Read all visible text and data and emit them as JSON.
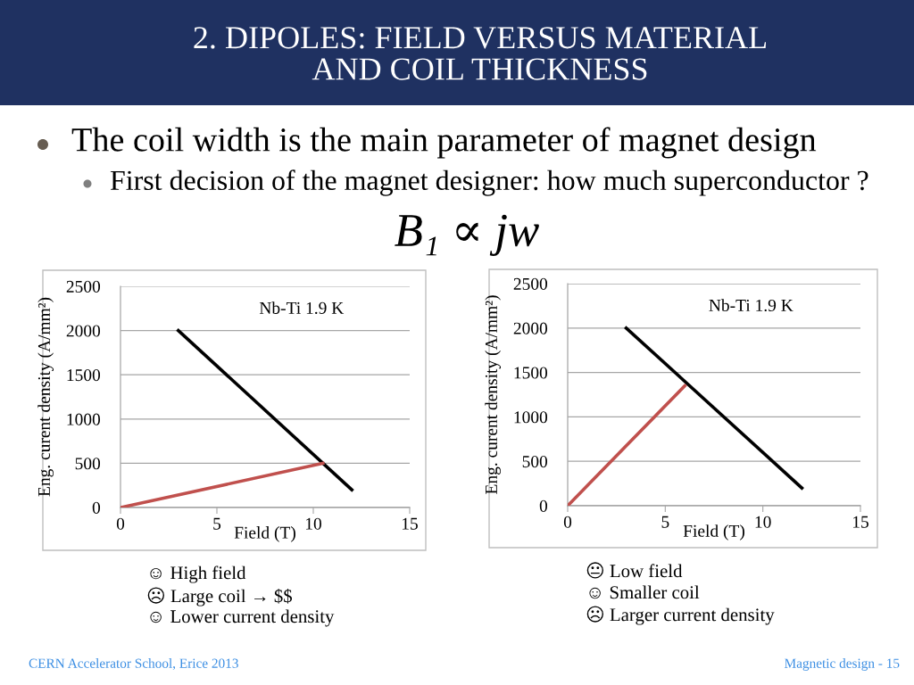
{
  "chart_data": [
    {
      "type": "line",
      "title": "2. DIPOLES: FIELD VERSUS MATERIAL\nAND COIL THICKNESS",
      "xlabel": "Field (T)",
      "ylabel": "Eng. curent density (A/mm²)",
      "xlim": [
        0,
        15
      ],
      "xticks": [
        0,
        5,
        10,
        15
      ],
      "ylim": [
        0,
        2500
      ],
      "yticks": [
        0,
        500,
        1000,
        1500,
        2000,
        2500
      ],
      "grid": "y",
      "series": [
        {
          "color": "#000000",
          "x": [
            3,
            12
          ],
          "values": [
            2000,
            200
          ]
        },
        {
          "color": "#c0504d",
          "x": [
            0,
            10.5
          ],
          "values": [
            0,
            500
          ]
        }
      ],
      "annotations": [
        "The coil width is the main parameter of magnet design",
        "First decision of the magnet designer: how much superconductor ?",
        "B₁ ∝ jw",
        "Nb-Ti 1.9 K",
        "☺ High field",
        "☹ Large coil → $$",
        "☺ Lower current density",
        "CERN Accelerator School, Erice 2013",
        "Magnetic design - 15"
      ]
    },
    {
      "type": "line",
      "xlabel": "Field (T)",
      "ylabel": "Eng. curent density (A/mm²)",
      "xlim": [
        0,
        15
      ],
      "xticks": [
        0,
        5,
        10,
        15
      ],
      "ylim": [
        0,
        2500
      ],
      "yticks": [
        0,
        500,
        1000,
        1500,
        2000,
        2500
      ],
      "grid": "y",
      "series": [
        {
          "color": "#000000",
          "x": [
            3,
            12
          ],
          "values": [
            2000,
            200
          ]
        },
        {
          "color": "#c0504d",
          "x": [
            0,
            6
          ],
          "values": [
            0,
            1350
          ]
        }
      ],
      "annotations": [
        "Nb-Ti 1.9 K",
        "😐 Low field",
        "☺ Smaller coil",
        "☹ Larger current density"
      ]
    }
  ]
}
